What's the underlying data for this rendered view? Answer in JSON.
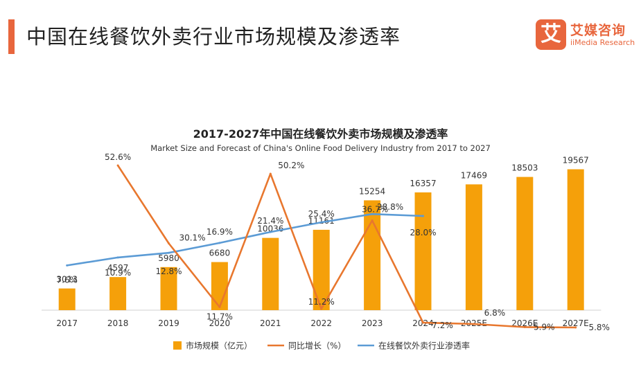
{
  "header": {
    "title": "中国在线餐饮外卖行业市场规模及渗透率",
    "accent_color": "#e8663d"
  },
  "logo": {
    "mark": "艾",
    "name_cn": "艾媒咨询",
    "name_en": "iiMedia Research",
    "color": "#e8663d"
  },
  "chart_data": {
    "type": "bar",
    "title": "2017-2027年中国在线餐饮外卖市场规模及渗透率",
    "subtitle": "Market Size and Forecast of China's Online Food Delivery Industry from 2017 to 2027",
    "categories": [
      "2017",
      "2018",
      "2019",
      "2020",
      "2021",
      "2022",
      "2023",
      "2024",
      "2025E",
      "2026E",
      "2027E"
    ],
    "series": [
      {
        "name": "市场规模（亿元）",
        "type": "bar",
        "color": "#f5a00a",
        "values": [
          3013,
          4597,
          5980,
          6680,
          10036,
          11161,
          15254,
          16357,
          17469,
          18503,
          19567
        ],
        "labels": [
          "3013",
          "4597",
          "5980",
          "6680",
          "10036",
          "11161",
          "15254",
          "16357",
          "17469",
          "18503",
          "19567"
        ]
      },
      {
        "name": "同比增长（%）",
        "type": "line",
        "color": "#e8772e",
        "values": [
          null,
          52.6,
          30.1,
          11.7,
          50.2,
          11.2,
          36.7,
          7.2,
          6.8,
          5.9,
          5.8
        ],
        "labels": [
          "",
          "52.6%",
          "30.1%",
          "11.7%",
          "50.2%",
          "11.2%",
          "36.7%",
          "7.2%",
          "6.8%",
          "5.9%",
          "5.8%"
        ]
      },
      {
        "name": "在线餐饮外卖行业渗透率",
        "type": "line",
        "color": "#5b9bd5",
        "values": [
          7.6,
          10.9,
          12.8,
          16.9,
          21.4,
          25.4,
          28.8,
          28.0,
          null,
          null,
          null
        ],
        "labels": [
          "7.6%",
          "10.9%",
          "12.8%",
          "16.9%",
          "21.4%",
          "25.4%",
          "28.8%",
          "28.0%",
          "",
          "",
          ""
        ]
      }
    ],
    "ylim_bar": [
      0,
      25000
    ],
    "ylim_growth": [
      0,
      60
    ],
    "ylim_penetration": [
      0,
      60
    ],
    "grid": false,
    "legend_position": "bottom"
  }
}
